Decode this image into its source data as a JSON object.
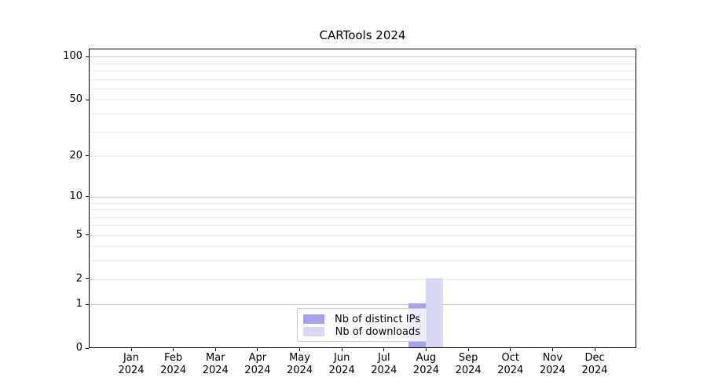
{
  "title": "CARTools 2024",
  "chart_data": {
    "type": "bar",
    "title": "CARTools 2024",
    "categories": [
      "Jan",
      "Feb",
      "Mar",
      "Apr",
      "May",
      "Jun",
      "Jul",
      "Aug",
      "Sep",
      "Oct",
      "Nov",
      "Dec"
    ],
    "category_year": "2024",
    "series": [
      {
        "name": "Nb of distinct IPs",
        "color": "#a3a3ec",
        "values": [
          0,
          0,
          0,
          0,
          0,
          0,
          0,
          1,
          0,
          0,
          0,
          0
        ]
      },
      {
        "name": "Nb of downloads",
        "color": "#d8d8f6",
        "values": [
          0,
          0,
          0,
          0,
          0,
          0,
          0,
          2,
          0,
          0,
          0,
          0
        ]
      }
    ],
    "xlabel": "",
    "ylabel": "",
    "y_axis": {
      "scale": "log10(1+y)",
      "tick_values": [
        0,
        1,
        2,
        5,
        10,
        20,
        50,
        100
      ],
      "tick_labels": [
        "0",
        "1",
        "2",
        "5",
        "10",
        "20",
        "50",
        "100"
      ],
      "ylim_top": 113
    },
    "grid": {
      "on": true,
      "major_values": [
        1,
        10,
        100
      ],
      "minor_values": [
        2,
        3,
        4,
        5,
        6,
        7,
        8,
        9,
        20,
        30,
        40,
        50,
        60,
        70,
        80,
        90
      ],
      "major_color": "#c9c9c9",
      "minor_color": "#ebebeb"
    },
    "legend": {
      "position": "lower-center-inside",
      "entries": [
        "Nb of distinct IPs",
        "Nb of downloads"
      ]
    }
  },
  "colors": {
    "background": "#ffffff",
    "spine": "#000000",
    "text": "#000000",
    "legend_border": "#cccccc"
  }
}
